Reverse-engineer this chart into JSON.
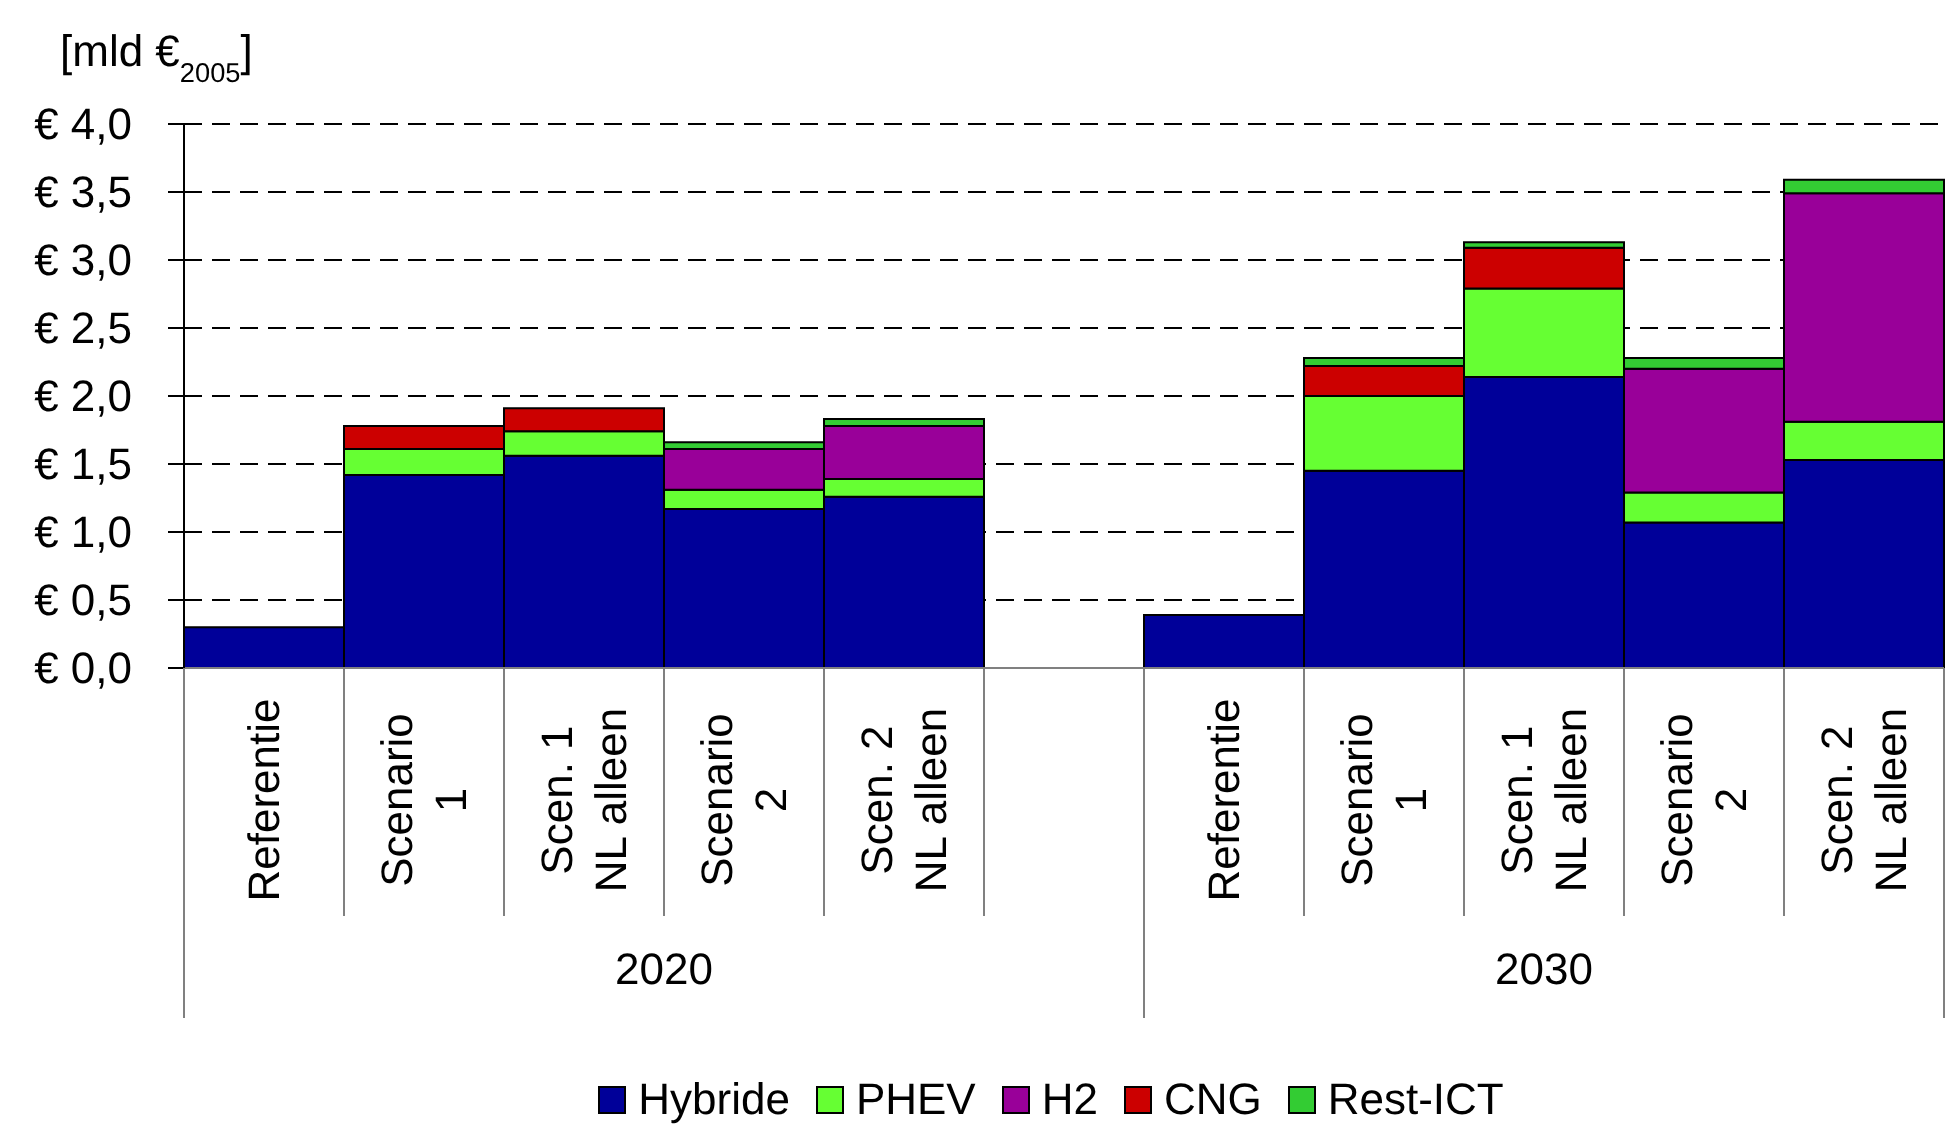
{
  "chart_data": {
    "type": "bar",
    "stacked": true,
    "categories": [
      "Referentie",
      "Scenario 1",
      "Scen. 1 NL alleen",
      "Scenario 2",
      "Scen. 2 NL alleen",
      null,
      "Referentie",
      "Scenario 1",
      "Scen. 1 NL alleen",
      "Scenario 2",
      "Scen. 2 NL alleen"
    ],
    "annotations": [
      "2020",
      "2030"
    ],
    "ylabel": "[mld €$_{2005}$]",
    "series": [
      {
        "name": "Hybride",
        "color": "#000099",
        "values": [
          0.3,
          1.42,
          1.56,
          1.17,
          1.26,
          null,
          0.39,
          1.45,
          2.14,
          1.07,
          1.53
        ]
      },
      {
        "name": "PHEV",
        "color": "#66ff33",
        "values": [
          null,
          0.19,
          0.18,
          0.14,
          0.13,
          null,
          null,
          0.55,
          0.65,
          0.22,
          0.28
        ]
      },
      {
        "name": "H2",
        "color": "#990099",
        "values": [
          null,
          null,
          null,
          0.3,
          0.39,
          null,
          null,
          null,
          null,
          0.91,
          1.68
        ]
      },
      {
        "name": "CNG",
        "color": "#cc0000",
        "values": [
          null,
          0.17,
          0.17,
          null,
          null,
          null,
          null,
          0.22,
          0.3,
          null,
          null
        ]
      },
      {
        "name": "Rest-ICT",
        "color": "#33cc33",
        "values": [
          null,
          null,
          null,
          0.05,
          0.05,
          null,
          null,
          0.06,
          0.04,
          0.08,
          0.1
        ]
      }
    ],
    "ylim": [
      0,
      4
    ],
    "yticks": [
      {
        "value": 0,
        "label": "€ 0,0"
      },
      {
        "value": 0.5,
        "label": "€ 0,5"
      },
      {
        "value": 1,
        "label": "€ 1,0"
      },
      {
        "value": 1.5,
        "label": "€ 1,5"
      },
      {
        "value": 2,
        "label": "€ 2,0"
      },
      {
        "value": 2.5,
        "label": "€ 2,5"
      },
      {
        "value": 3,
        "label": "€ 3,0"
      },
      {
        "value": 3.5,
        "label": "€ 3,5"
      },
      {
        "value": 4,
        "label": "€ 4,0"
      }
    ],
    "grid": "y",
    "legend": "bottom"
  }
}
